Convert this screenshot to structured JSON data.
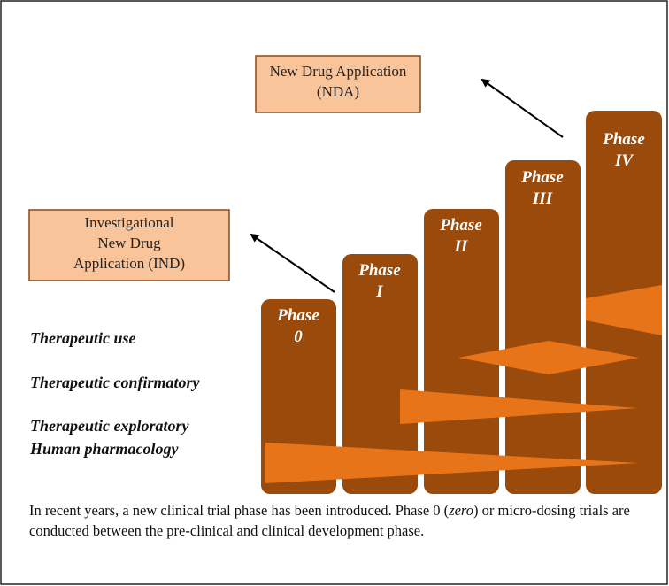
{
  "boxes": [
    {
      "lines": [
        "New Drug Application",
        "(NDA)"
      ]
    },
    {
      "lines": [
        "Investigational",
        "New Drug",
        "Application (IND)"
      ]
    }
  ],
  "phases": [
    {
      "lines": [
        "Phase",
        "0"
      ]
    },
    {
      "lines": [
        "Phase",
        "I"
      ]
    },
    {
      "lines": [
        "Phase",
        "II"
      ]
    },
    {
      "lines": [
        "Phase",
        "III"
      ]
    },
    {
      "lines": [
        "Phase",
        "IV"
      ]
    }
  ],
  "tracks": [
    "Therapeutic use",
    "Therapeutic confirmatory",
    "Therapeutic exploratory",
    "Human pharmacology"
  ],
  "caption": {
    "before": "In recent years, a new clinical trial phase has been introduced. Phase 0 (",
    "emphasis": "zero",
    "after": ") or micro-dosing trials are conducted between the pre-clinical and clinical development phase."
  }
}
